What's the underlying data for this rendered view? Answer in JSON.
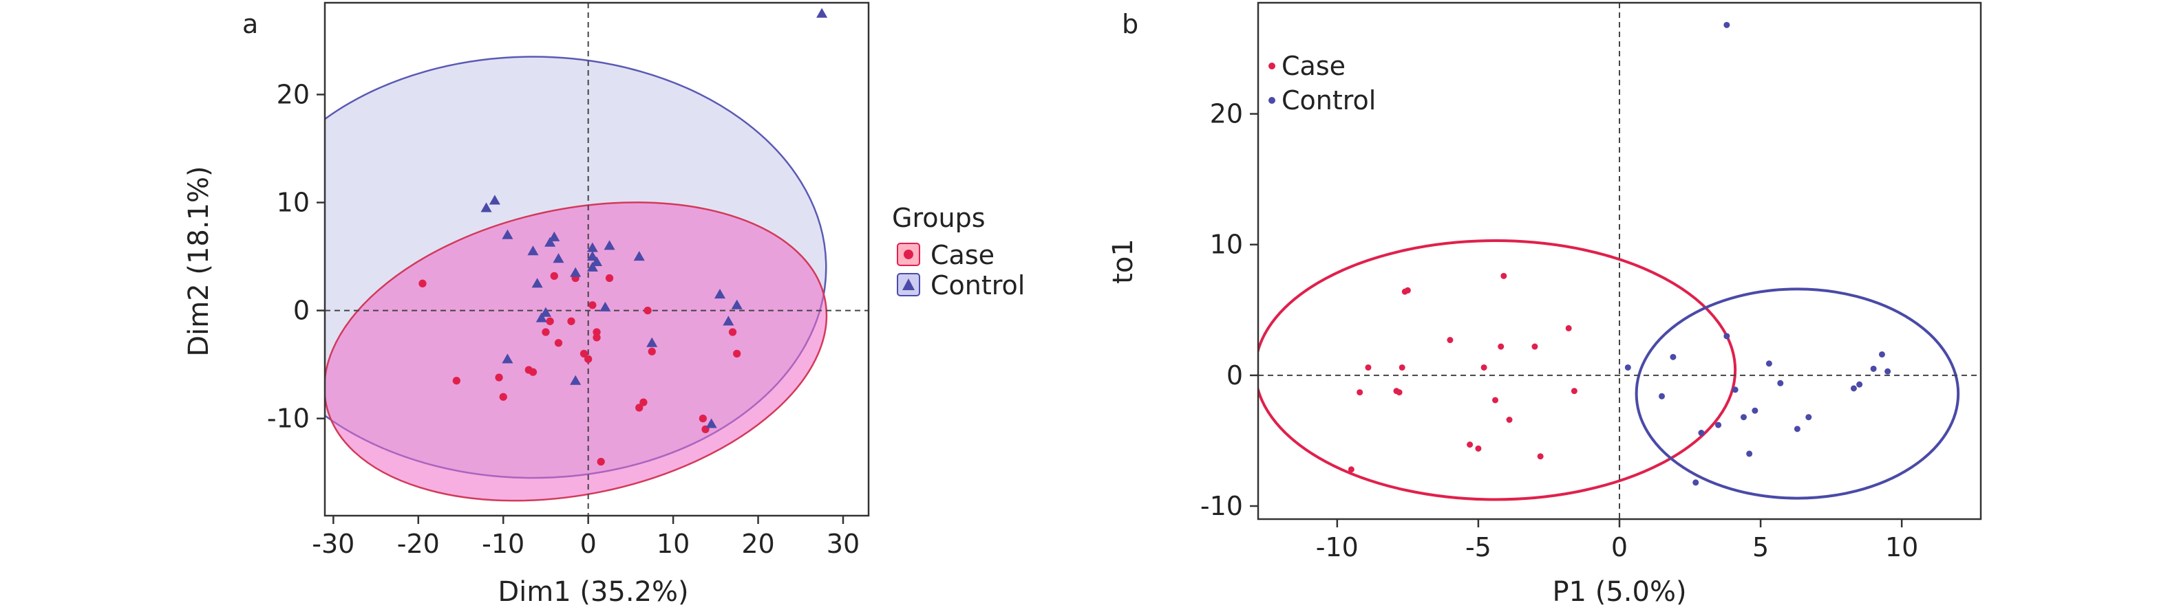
{
  "colors": {
    "case": "#e0204c",
    "control": "#4a4aa8",
    "case_fill": "#ffb6c4",
    "control_fill": "#c8c8f0",
    "overlap_fill": "#e2a6ea",
    "axis": "#333333"
  },
  "chart_data": [
    {
      "type": "scatter",
      "panel_label": "a",
      "xlabel": "Dim1 (35.2%)",
      "ylabel": "Dim2 (18.1%)",
      "xlim": [
        -31,
        33
      ],
      "ylim": [
        -19,
        28.5
      ],
      "xticks": [
        -30,
        -20,
        -10,
        0,
        10,
        20,
        30
      ],
      "yticks": [
        -10,
        0,
        10,
        20
      ],
      "reference_lines": {
        "x": 0,
        "y": 0
      },
      "grid": false,
      "legend": {
        "title": "Groups",
        "placement": "right",
        "entries": [
          {
            "label": "Case",
            "marker": "circle",
            "color": "case"
          },
          {
            "label": "Control",
            "marker": "triangle",
            "color": "control"
          }
        ]
      },
      "series": [
        {
          "name": "Case",
          "marker": "circle",
          "color": "case",
          "x": [
            -19.5,
            -15.5,
            -10.5,
            -10,
            -7,
            -6.5,
            -5,
            -4.5,
            -3.5,
            -2,
            -1.5,
            -0.5,
            0,
            0.5,
            1,
            1,
            1.5,
            2.5,
            6,
            6.5,
            7,
            7.5,
            13.5,
            13.8,
            17,
            17.5,
            -4
          ],
          "y": [
            2.5,
            -6.5,
            -6.2,
            -8,
            -5.5,
            -5.7,
            -2,
            -1,
            -3,
            -1,
            3,
            -4,
            -4.5,
            0.5,
            -2,
            -2.5,
            -14,
            3,
            -9,
            -8.5,
            0,
            -3.8,
            -10,
            -11,
            -2,
            -4,
            3.2
          ]
        },
        {
          "name": "Control",
          "marker": "triangle",
          "color": "control",
          "x": [
            27.5,
            -12,
            -11,
            -9.5,
            -6.5,
            -4.5,
            -4,
            -3.5,
            -6,
            -1.5,
            0.5,
            0.5,
            0.5,
            1,
            2,
            6,
            7.5,
            15.5,
            16.5,
            14.5,
            17.5,
            -9.5,
            -5,
            -5.5,
            -1.5,
            2.5
          ],
          "y": [
            27.5,
            9.5,
            10.2,
            7,
            5.5,
            6.3,
            6.8,
            4.8,
            2.5,
            3.5,
            5,
            4,
            5.8,
            4.5,
            0.3,
            5,
            -3,
            1.5,
            -1,
            -10.5,
            0.5,
            -4.5,
            -0.2,
            -0.7,
            -6.5,
            6
          ]
        }
      ],
      "ellipses": [
        {
          "group": "Control",
          "cx": -6.5,
          "cy": 4,
          "rx": 34.5,
          "ry": 19.5,
          "angle_deg": 0
        },
        {
          "group": "Case",
          "cx": -1.5,
          "cy": -3.8,
          "rx": 30,
          "ry": 13.2,
          "angle_deg": -12
        }
      ]
    },
    {
      "type": "scatter",
      "panel_label": "b",
      "xlabel": "P1 (5.0%)",
      "ylabel": "to1",
      "xlim": [
        -12.8,
        12.8
      ],
      "ylim": [
        -11,
        28.5
      ],
      "xticks": [
        -10,
        -5,
        0,
        5,
        10
      ],
      "yticks": [
        -10,
        0,
        10,
        20
      ],
      "reference_lines": {
        "x": 0,
        "y": 0
      },
      "grid": false,
      "legend": {
        "placement": "top-left",
        "entries": [
          {
            "label": "Case",
            "color": "case"
          },
          {
            "label": "Control",
            "color": "control"
          }
        ]
      },
      "series": [
        {
          "name": "Case",
          "color": "case",
          "x": [
            -9.5,
            -9.2,
            -8.9,
            -7.9,
            -7.8,
            -7.7,
            -7.6,
            -7.5,
            -6.0,
            -5.3,
            -5.0,
            -4.8,
            -4.4,
            -4.2,
            -4.1,
            -3.9,
            -3.0,
            -2.8,
            -1.8,
            -1.6
          ],
          "y": [
            -7.2,
            -1.3,
            0.6,
            -1.2,
            -1.3,
            0.6,
            6.4,
            6.5,
            2.7,
            -5.3,
            -5.6,
            0.6,
            -1.9,
            2.2,
            7.6,
            -3.4,
            2.2,
            -6.2,
            3.6,
            -1.2
          ]
        },
        {
          "name": "Control",
          "color": "control",
          "x": [
            0.3,
            1.5,
            1.9,
            2.7,
            2.9,
            3.5,
            3.8,
            4.1,
            4.4,
            4.6,
            4.8,
            5.3,
            5.7,
            6.3,
            6.7,
            8.3,
            8.5,
            9.0,
            9.3,
            9.5,
            3.8
          ],
          "y": [
            0.6,
            -1.6,
            1.4,
            -8.2,
            -4.4,
            -3.8,
            3.0,
            -1.1,
            -3.2,
            -6.0,
            -2.7,
            0.9,
            -0.6,
            -4.1,
            -3.2,
            -1.0,
            -0.7,
            0.5,
            1.6,
            0.3,
            26.8
          ]
        }
      ],
      "ellipses": [
        {
          "group": "Case",
          "cx": -4.4,
          "cy": 0.4,
          "rx": 8.5,
          "ry": 9.9,
          "angle_deg": 0
        },
        {
          "group": "Control",
          "cx": 6.3,
          "cy": -1.4,
          "rx": 5.7,
          "ry": 8.0,
          "angle_deg": 0
        }
      ]
    }
  ]
}
